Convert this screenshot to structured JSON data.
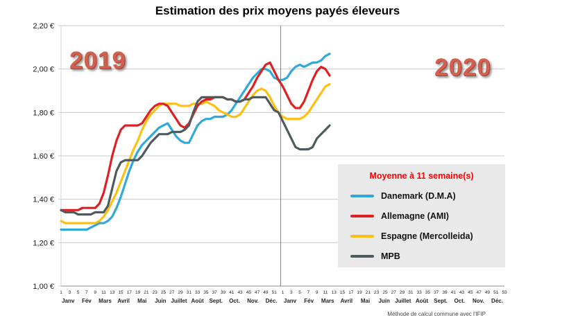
{
  "footer_note": "Méthode de calcul commune avec l'IFIP",
  "legend": {
    "title": "Moyenne à  11 semaine(s)",
    "items": [
      {
        "label": "Danemark (D.M.A)",
        "color": "#2FA8DC"
      },
      {
        "label": "Allemagne (AMI)",
        "color": "#E02020"
      },
      {
        "label": "Espagne (Mercolleida)",
        "color": "#FDC010"
      },
      {
        "label": "MPB",
        "color": "#4E5A5C"
      }
    ]
  },
  "chart_data": {
    "type": "line",
    "title": "Estimation des prix moyens payés éleveurs",
    "ylim": [
      1.0,
      2.2
    ],
    "grid": true,
    "legend_position": "middle-right",
    "annotations": [
      {
        "text": "2019",
        "position": "top-left"
      },
      {
        "text": "2020",
        "position": "top-right"
      }
    ],
    "yticks": {
      "values": [
        1.0,
        1.2,
        1.4,
        1.6,
        1.8,
        2.0,
        2.2
      ],
      "labels": [
        "1,00 €",
        "1,20 €",
        "1,40 €",
        "1,60 €",
        "1,80 €",
        "2,00 €",
        "2,20 €"
      ]
    },
    "x_axis": {
      "unit": "semaine",
      "years": [
        {
          "year": "2019",
          "weeks": 52,
          "week_ticks": [
            "1",
            "3",
            "5",
            "7",
            "9",
            "11",
            "13",
            "15",
            "17",
            "19",
            "21",
            "23",
            "25",
            "27",
            "29",
            "31",
            "33",
            "35",
            "37",
            "39",
            "41",
            "43",
            "45",
            "47",
            "49",
            "51"
          ],
          "months": [
            "Janv",
            "Fév",
            "Mars",
            "Avril",
            "Mai",
            "Juin",
            "Juillet",
            "Août",
            "Sept.",
            "Oct.",
            "Nov.",
            "Déc."
          ]
        },
        {
          "year": "2020",
          "weeks": 53,
          "week_ticks": [
            "1",
            "3",
            "5",
            "7",
            "9",
            "11",
            "13",
            "15",
            "17",
            "19",
            "21",
            "23",
            "25",
            "27",
            "29",
            "31",
            "33",
            "35",
            "37",
            "39",
            "41",
            "43",
            "45",
            "47",
            "49",
            "51",
            "53"
          ],
          "months": [
            "Janv",
            "Fév",
            "Mars",
            "Avril",
            "Mai",
            "Juin",
            "Juillet",
            "Août",
            "Sept.",
            "Oct.",
            "Nov.",
            "Déc."
          ]
        }
      ]
    },
    "series": [
      {
        "name": "Danemark (D.M.A)",
        "color": "#2FA8DC",
        "values_2019": [
          1.26,
          1.26,
          1.26,
          1.26,
          1.26,
          1.26,
          1.26,
          1.27,
          1.28,
          1.29,
          1.29,
          1.3,
          1.32,
          1.36,
          1.41,
          1.47,
          1.53,
          1.58,
          1.62,
          1.65,
          1.67,
          1.69,
          1.71,
          1.73,
          1.74,
          1.75,
          1.72,
          1.69,
          1.67,
          1.66,
          1.66,
          1.7,
          1.74,
          1.76,
          1.77,
          1.77,
          1.78,
          1.78,
          1.78,
          1.79,
          1.81,
          1.84,
          1.87,
          1.9,
          1.93,
          1.96,
          1.98,
          2.0,
          2.0,
          1.99,
          1.96,
          1.95
        ],
        "values_2020": [
          1.95,
          1.96,
          1.99,
          2.01,
          2.02,
          2.01,
          2.02,
          2.03,
          2.03,
          2.04,
          2.06,
          2.07
        ]
      },
      {
        "name": "Espagne (Mercolleida)",
        "color": "#FDC010",
        "values_2019": [
          1.3,
          1.29,
          1.29,
          1.29,
          1.29,
          1.29,
          1.29,
          1.29,
          1.29,
          1.3,
          1.32,
          1.35,
          1.39,
          1.43,
          1.48,
          1.53,
          1.58,
          1.63,
          1.67,
          1.72,
          1.76,
          1.79,
          1.81,
          1.83,
          1.84,
          1.84,
          1.84,
          1.84,
          1.83,
          1.83,
          1.83,
          1.84,
          1.84,
          1.84,
          1.85,
          1.84,
          1.83,
          1.81,
          1.8,
          1.79,
          1.78,
          1.78,
          1.79,
          1.82,
          1.85,
          1.88,
          1.9,
          1.91,
          1.9,
          1.87,
          1.83,
          1.8
        ],
        "values_2020": [
          1.78,
          1.77,
          1.77,
          1.77,
          1.77,
          1.78,
          1.8,
          1.83,
          1.86,
          1.89,
          1.92,
          1.93
        ]
      },
      {
        "name": "Allemagne (AMI)",
        "color": "#E02020",
        "values_2019": [
          1.35,
          1.35,
          1.35,
          1.35,
          1.35,
          1.36,
          1.36,
          1.36,
          1.36,
          1.38,
          1.43,
          1.51,
          1.6,
          1.67,
          1.72,
          1.74,
          1.74,
          1.74,
          1.74,
          1.75,
          1.78,
          1.81,
          1.83,
          1.84,
          1.84,
          1.83,
          1.8,
          1.77,
          1.74,
          1.73,
          1.75,
          1.79,
          1.83,
          1.85,
          1.86,
          1.86,
          1.87,
          1.87,
          1.87,
          1.86,
          1.86,
          1.85,
          1.85,
          1.86,
          1.89,
          1.92,
          1.96,
          1.99,
          2.02,
          2.03,
          1.99,
          1.95
        ],
        "values_2020": [
          1.92,
          1.88,
          1.84,
          1.82,
          1.82,
          1.85,
          1.9,
          1.95,
          1.99,
          2.01,
          2.0,
          1.97
        ]
      },
      {
        "name": "MPB",
        "color": "#4E5A5C",
        "values_2019": [
          1.35,
          1.34,
          1.34,
          1.34,
          1.33,
          1.33,
          1.33,
          1.33,
          1.34,
          1.34,
          1.34,
          1.37,
          1.45,
          1.53,
          1.57,
          1.58,
          1.58,
          1.58,
          1.58,
          1.6,
          1.63,
          1.66,
          1.68,
          1.7,
          1.7,
          1.7,
          1.71,
          1.71,
          1.71,
          1.72,
          1.74,
          1.8,
          1.85,
          1.87,
          1.87,
          1.87,
          1.87,
          1.87,
          1.87,
          1.86,
          1.86,
          1.85,
          1.85,
          1.86,
          1.86,
          1.87,
          1.87,
          1.87,
          1.87,
          1.84,
          1.81,
          1.8
        ],
        "values_2020": [
          1.76,
          1.72,
          1.68,
          1.64,
          1.63,
          1.63,
          1.63,
          1.64,
          1.68,
          1.7,
          1.72,
          1.74
        ]
      }
    ]
  }
}
